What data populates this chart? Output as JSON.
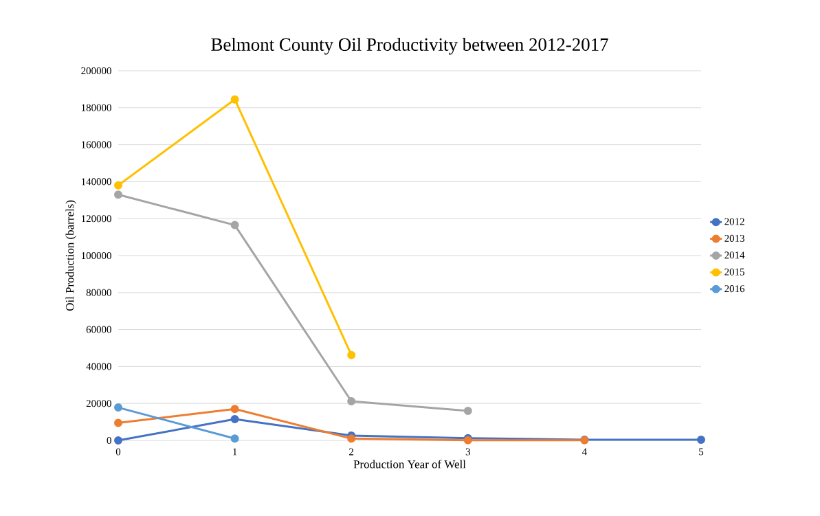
{
  "chart_data": {
    "type": "line",
    "title": "Belmont County Oil Productivity between 2012-2017",
    "xlabel": "Production Year of Well",
    "ylabel": "Oil Production (barrels)",
    "x": [
      0,
      1,
      2,
      3,
      4,
      5
    ],
    "series": [
      {
        "name": "2012",
        "color": "#4472c4",
        "values": [
          0,
          11500,
          2600,
          1200,
          400,
          400
        ]
      },
      {
        "name": "2013",
        "color": "#ed7d31",
        "values": [
          9500,
          17000,
          1000,
          100,
          100,
          null
        ]
      },
      {
        "name": "2014",
        "color": "#a5a5a5",
        "values": [
          133000,
          116500,
          21200,
          16000,
          null,
          null
        ]
      },
      {
        "name": "2015",
        "color": "#ffc000",
        "values": [
          138000,
          184500,
          46200,
          null,
          null,
          null
        ]
      },
      {
        "name": "2016",
        "color": "#5b9bd5",
        "values": [
          17800,
          1000,
          null,
          null,
          null,
          null
        ]
      }
    ],
    "xlim": [
      0,
      5
    ],
    "xticks": [
      0,
      1,
      2,
      3,
      4,
      5
    ],
    "ylim": [
      0,
      200000
    ],
    "yticks": [
      0,
      20000,
      40000,
      60000,
      80000,
      100000,
      120000,
      140000,
      160000,
      180000,
      200000
    ],
    "grid": "y",
    "legend": "right",
    "marker": "circle",
    "line_style": "solid"
  }
}
